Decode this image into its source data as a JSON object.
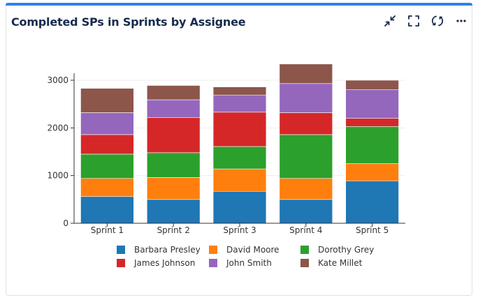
{
  "widget": {
    "title": "Completed SPs in Sprints by Assignee",
    "toolbar": [
      {
        "name": "minimize-icon",
        "icon": "minimize-icon"
      },
      {
        "name": "fullscreen-icon",
        "icon": "fullscreen-icon"
      },
      {
        "name": "refresh-icon",
        "icon": "refresh-icon"
      },
      {
        "name": "more-icon",
        "icon": "more-icon"
      }
    ],
    "accent": "#2f80ed"
  },
  "chart_data": {
    "type": "bar",
    "stacked": true,
    "title": "",
    "xlabel": "",
    "ylabel": "",
    "ylim": [
      0,
      3000
    ],
    "yticks": [
      0,
      1000,
      2000,
      3000
    ],
    "categories": [
      "Sprint 1",
      "Sprint 2",
      "Sprint 3",
      "Sprint 4",
      "Sprint 5"
    ],
    "series": [
      {
        "name": "Barbara Presley",
        "color": "#1f77b4",
        "values": [
          560,
          500,
          670,
          500,
          890
        ]
      },
      {
        "name": "David Moore",
        "color": "#ff7f0e",
        "values": [
          380,
          460,
          470,
          440,
          360
        ]
      },
      {
        "name": "Dorothy Grey",
        "color": "#2ca02c",
        "values": [
          510,
          520,
          470,
          920,
          780
        ]
      },
      {
        "name": "James Johnson",
        "color": "#d62728",
        "values": [
          410,
          740,
          720,
          460,
          170
        ]
      },
      {
        "name": "John Smith",
        "color": "#9467bd",
        "values": [
          460,
          370,
          360,
          610,
          600
        ]
      },
      {
        "name": "Kate Millet",
        "color": "#8c564b",
        "values": [
          510,
          300,
          170,
          410,
          200
        ]
      }
    ],
    "legend": "bottom"
  }
}
